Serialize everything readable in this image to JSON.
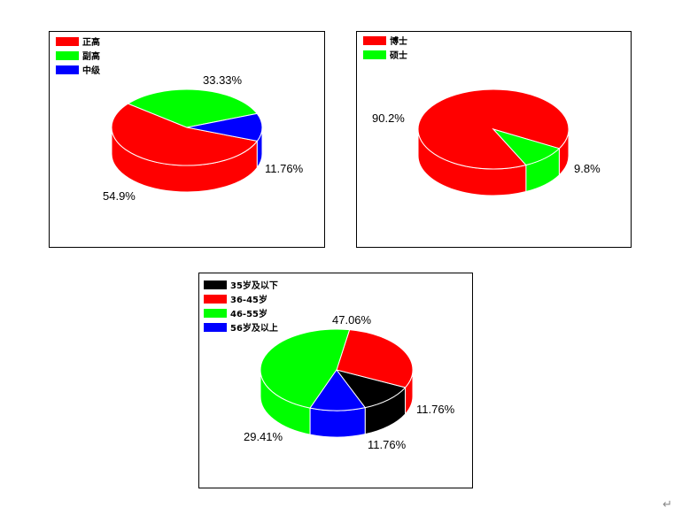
{
  "chart_data": [
    {
      "type": "pie",
      "slices": [
        {
          "label": "正高",
          "value": 54.9,
          "value_label": "54.9%",
          "color": "#ff0000"
        },
        {
          "label": "副高",
          "value": 33.33,
          "value_label": "33.33%",
          "color": "#00ff00"
        },
        {
          "label": "中级",
          "value": 11.76,
          "value_label": "11.76%",
          "color": "#0000ff"
        }
      ],
      "legend_position": "top-left",
      "style": "3d"
    },
    {
      "type": "pie",
      "slices": [
        {
          "label": "博士",
          "value": 90.2,
          "value_label": "90.2%",
          "color": "#ff0000"
        },
        {
          "label": "硕士",
          "value": 9.8,
          "value_label": "9.8%",
          "color": "#00ff00"
        }
      ],
      "legend_position": "top-left",
      "style": "3d"
    },
    {
      "type": "pie",
      "slices": [
        {
          "label": "35岁及以下",
          "value": 11.76,
          "value_label": "11.76%",
          "color": "#000000"
        },
        {
          "label": "36-45岁",
          "value": 29.41,
          "value_label": "29.41%",
          "color": "#ff0000"
        },
        {
          "label": "46-55岁",
          "value": 47.06,
          "value_label": "47.06%",
          "color": "#00ff00"
        },
        {
          "label": "56岁及以上",
          "value": 11.76,
          "value_label": "11.76%",
          "color": "#0000ff"
        }
      ],
      "legend_position": "top-left",
      "style": "3d"
    }
  ],
  "footer": {
    "return_mark": "↵"
  }
}
